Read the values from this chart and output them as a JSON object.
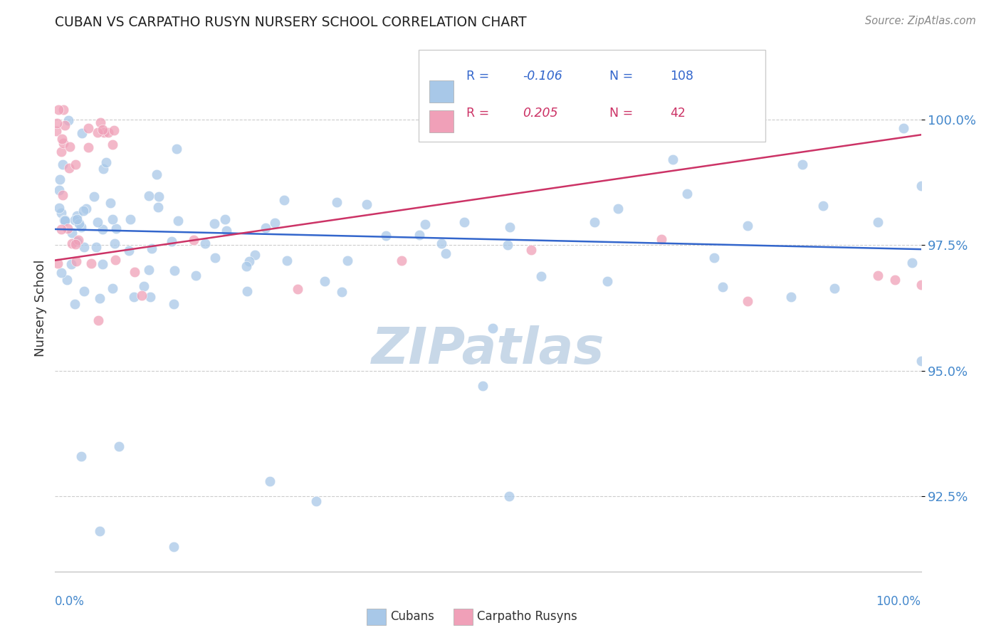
{
  "title": "CUBAN VS CARPATHO RUSYN NURSERY SCHOOL CORRELATION CHART",
  "source": "Source: ZipAtlas.com",
  "ylabel": "Nursery School",
  "xlim": [
    0.0,
    100.0
  ],
  "ylim": [
    91.0,
    101.5
  ],
  "legend_r_blue": "-0.106",
  "legend_n_blue": "108",
  "legend_r_pink": "0.205",
  "legend_n_pink": "42",
  "blue_color": "#a8c8e8",
  "pink_color": "#f0a0b8",
  "blue_line_color": "#3366cc",
  "pink_line_color": "#cc3366",
  "ytick_vals": [
    92.5,
    95.0,
    97.5,
    100.0
  ],
  "ytick_labels": [
    "92.5%",
    "95.0%",
    "97.5%",
    "100.0%"
  ],
  "cubans_label": "Cubans",
  "carpatho_label": "Carpatho Rusyns",
  "blue_trend_y": [
    97.82,
    97.42
  ],
  "pink_trend_y": [
    97.2,
    99.7
  ],
  "watermark_text": "ZIPatlas",
  "watermark_color": "#c8d8e8"
}
